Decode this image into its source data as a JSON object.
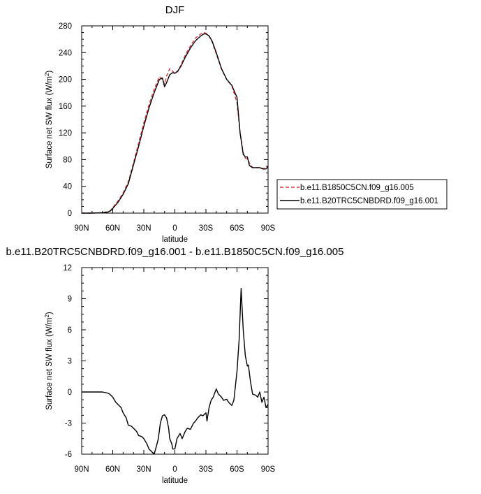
{
  "chart_data": [
    {
      "type": "line",
      "title": "DJF",
      "xlabel": "latitude",
      "ylabel": "Surface net SW flux (W/m",
      "ylabel_superscript": "2",
      "ylabel_close": ")",
      "xlim": [
        90,
        -90
      ],
      "ylim": [
        0,
        280
      ],
      "xticks": [
        90,
        60,
        30,
        0,
        -30,
        -60,
        -90
      ],
      "xtick_labels": [
        "90N",
        "60N",
        "30N",
        "0",
        "30S",
        "60S",
        "90S"
      ],
      "yticks": [
        0,
        40,
        80,
        120,
        160,
        200,
        240,
        280
      ],
      "ytick_labels": [
        "0",
        "40",
        "80",
        "120",
        "160",
        "200",
        "240",
        "280"
      ],
      "legend": "right",
      "series": [
        {
          "name": "b.e11.B1850C5CN.f09_g16.005",
          "color": "#e8303c",
          "dash": "dashed",
          "x": [
            90,
            80,
            70,
            65,
            62,
            60,
            55,
            50,
            45,
            40,
            35,
            30,
            25,
            20,
            15,
            12,
            10,
            8,
            5,
            2,
            0,
            -3,
            -6,
            -10,
            -15,
            -20,
            -25,
            -28,
            -30,
            -33,
            -36,
            -40,
            -45,
            -50,
            -55,
            -60,
            -63,
            -66,
            -68,
            -70,
            -72,
            -75,
            -78,
            -82,
            -85,
            -88,
            -90
          ],
          "y": [
            0,
            0,
            0.5,
            2,
            4,
            8,
            18,
            30,
            47,
            75,
            105,
            135,
            162,
            185,
            204,
            200,
            193,
            205,
            216,
            212,
            209,
            212,
            222,
            236,
            250,
            262,
            268,
            270,
            269,
            265,
            256,
            238,
            215,
            200,
            190,
            165,
            120,
            90,
            82,
            81,
            75,
            68,
            68,
            68,
            67,
            67,
            70
          ]
        },
        {
          "name": "b.e11.B20TRC5CNBDRD.f09_g16.001",
          "color": "#000000",
          "dash": "solid",
          "x": [
            90,
            80,
            70,
            65,
            62,
            60,
            55,
            50,
            45,
            40,
            35,
            30,
            25,
            20,
            15,
            12,
            10,
            8,
            5,
            2,
            0,
            -3,
            -6,
            -10,
            -15,
            -20,
            -25,
            -28,
            -30,
            -33,
            -36,
            -40,
            -45,
            -50,
            -55,
            -60,
            -63,
            -66,
            -68,
            -70,
            -72,
            -75,
            -78,
            -82,
            -85,
            -88,
            -90
          ],
          "y": [
            0,
            0,
            0.5,
            1.5,
            3.5,
            7,
            16,
            28,
            44,
            72,
            100,
            130,
            157,
            180,
            200,
            202,
            189,
            195,
            207,
            210,
            209,
            213,
            220,
            233,
            247,
            258,
            265,
            268,
            268,
            265,
            257,
            240,
            216,
            200,
            191,
            173,
            120,
            88,
            84,
            84,
            71,
            68,
            68,
            68,
            66,
            66,
            69
          ]
        }
      ]
    },
    {
      "type": "line",
      "title": "b.e11.B20TRC5CNBDRD.f09_g16.001 - b.e11.B1850C5CN.f09_g16.005",
      "xlabel": "latitude",
      "ylabel": "Surface net SW flux (W/m",
      "ylabel_superscript": "2",
      "ylabel_close": ")",
      "xlim": [
        90,
        -90
      ],
      "ylim": [
        -6,
        12
      ],
      "xticks": [
        90,
        60,
        30,
        0,
        -30,
        -60,
        -90
      ],
      "xtick_labels": [
        "90N",
        "60N",
        "30N",
        "0",
        "30S",
        "60S",
        "90S"
      ],
      "yticks": [
        -6,
        -3,
        0,
        3,
        6,
        9,
        12
      ],
      "ytick_labels": [
        "-6",
        "-3",
        "0",
        "3",
        "6",
        "9",
        "12"
      ],
      "series": [
        {
          "color": "#000000",
          "dash": "solid",
          "x": [
            90,
            80,
            70,
            65,
            63,
            60,
            57,
            55,
            52,
            50,
            47,
            45,
            42,
            40,
            37,
            35,
            32,
            30,
            27,
            25,
            22,
            20,
            18,
            16,
            14,
            12,
            10,
            8,
            6,
            5,
            3,
            2,
            0,
            -2,
            -5,
            -7,
            -10,
            -12,
            -15,
            -18,
            -20,
            -22,
            -25,
            -27,
            -30,
            -31,
            -33,
            -35,
            -37,
            -40,
            -42,
            -45,
            -47,
            -50,
            -52,
            -55,
            -57,
            -60,
            -62,
            -64,
            -66,
            -68,
            -70,
            -71,
            -73,
            -75,
            -78,
            -80,
            -82,
            -84,
            -86,
            -88,
            -90
          ],
          "y": [
            0,
            0,
            0,
            -0.1,
            -0.2,
            -0.5,
            -1.0,
            -1.2,
            -1.5,
            -2.0,
            -2.5,
            -3.2,
            -3.3,
            -3.5,
            -3.8,
            -4.2,
            -4.3,
            -4.5,
            -5.0,
            -5.5,
            -5.8,
            -6.0,
            -5.3,
            -4.5,
            -3.0,
            -2.3,
            -2.2,
            -2.5,
            -3.5,
            -4.5,
            -5.0,
            -5.5,
            -5.5,
            -4.5,
            -4.0,
            -4.5,
            -3.8,
            -3.5,
            -3.6,
            -3.0,
            -2.8,
            -2.5,
            -2.2,
            -2.3,
            -2.0,
            -2.8,
            -1.5,
            -0.8,
            -0.5,
            0.3,
            -0.2,
            -0.5,
            -0.8,
            -0.7,
            -1.0,
            -1.3,
            -0.8,
            2.0,
            5.0,
            10.0,
            6.0,
            3.5,
            2.5,
            2.6,
            1.0,
            -0.2,
            -0.3,
            -0.5,
            0,
            -1.0,
            -0.5,
            -1.5,
            -1.2
          ]
        }
      ]
    }
  ]
}
